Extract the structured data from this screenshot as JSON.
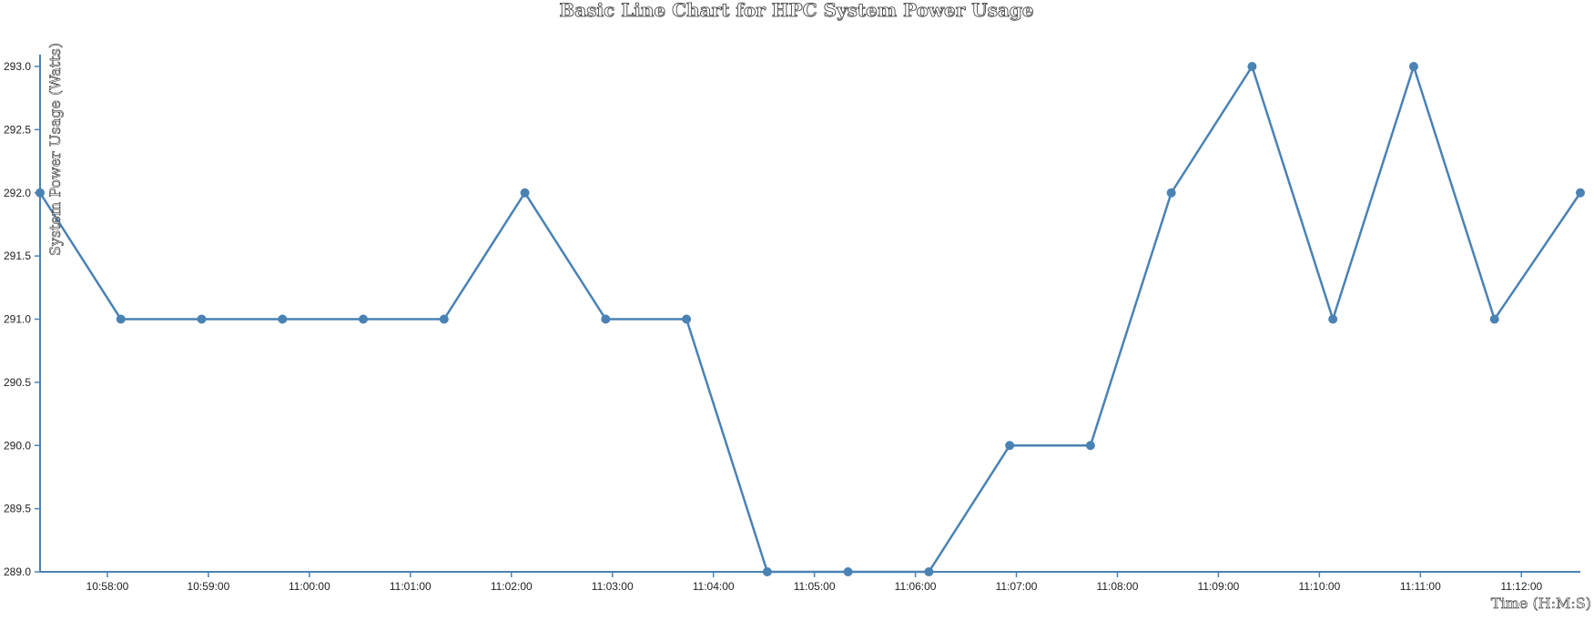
{
  "chart_data": {
    "type": "line",
    "title": "Basic Line Chart for HPC System Power Usage",
    "xlabel": "Time (H:M:S)",
    "ylabel": "System Power Usage (Watts)",
    "ylim": [
      289.0,
      293.0
    ],
    "y_ticks": [
      "289.0",
      "289.5",
      "290.0",
      "290.5",
      "291.0",
      "291.5",
      "292.0",
      "292.5",
      "293.0"
    ],
    "x_domain": [
      "10:57:20",
      "11:12:35"
    ],
    "x_ticks": [
      "10:58:00",
      "10:59:00",
      "11:00:00",
      "11:01:00",
      "11:02:00",
      "11:03:00",
      "11:04:00",
      "11:05:00",
      "11:06:00",
      "11:07:00",
      "11:08:00",
      "11:09:00",
      "11:10:00",
      "11:11:00",
      "11:12:00"
    ],
    "grid": false,
    "series": [
      {
        "x": [
          "10:57:20",
          "10:58:08",
          "10:58:56",
          "10:59:44",
          "11:00:32",
          "11:01:20",
          "11:02:08",
          "11:02:56",
          "11:03:44",
          "11:04:32",
          "11:05:20",
          "11:06:08",
          "11:06:56",
          "11:07:44",
          "11:08:32",
          "11:09:20",
          "11:10:08",
          "11:10:56",
          "11:11:44",
          "11:12:35"
        ],
        "y": [
          292.0,
          291.0,
          291.0,
          291.0,
          291.0,
          291.0,
          292.0,
          291.0,
          291.0,
          289.0,
          289.0,
          289.0,
          290.0,
          290.0,
          292.0,
          293.0,
          291.0,
          293.0,
          291.0,
          292.0
        ]
      }
    ],
    "color": "#4a82b4"
  }
}
